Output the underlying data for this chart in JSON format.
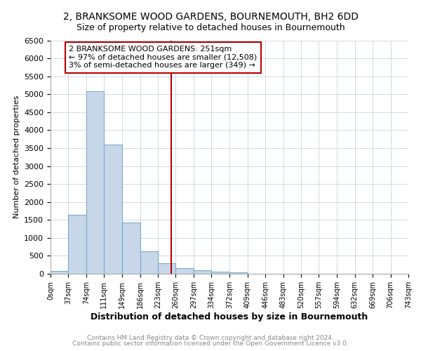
{
  "title": "2, BRANKSOME WOOD GARDENS, BOURNEMOUTH, BH2 6DD",
  "subtitle": "Size of property relative to detached houses in Bournemouth",
  "xlabel": "Distribution of detached houses by size in Bournemouth",
  "ylabel": "Number of detached properties",
  "bin_edges": [
    0,
    37,
    74,
    111,
    149,
    186,
    223,
    260,
    297,
    334,
    372,
    409,
    446,
    483,
    520,
    557,
    594,
    632,
    669,
    706,
    743
  ],
  "bar_heights": [
    75,
    1650,
    5080,
    3600,
    1420,
    620,
    300,
    150,
    100,
    50,
    30,
    0,
    0,
    0,
    0,
    0,
    0,
    0,
    0,
    0
  ],
  "bar_color": "#c8d8ea",
  "bar_edge_color": "#7aaac8",
  "vline_x": 251,
  "vline_color": "#bb0000",
  "annotation_line1": "2 BRANKSOME WOOD GARDENS: 251sqm",
  "annotation_line2": "← 97% of detached houses are smaller (12,508)",
  "annotation_line3": "3% of semi-detached houses are larger (349) →",
  "annotation_box_color": "#bb0000",
  "ylim": [
    0,
    6500
  ],
  "yticks": [
    0,
    500,
    1000,
    1500,
    2000,
    2500,
    3000,
    3500,
    4000,
    4500,
    5000,
    5500,
    6000,
    6500
  ],
  "tick_labels": [
    "0sqm",
    "37sqm",
    "74sqm",
    "111sqm",
    "149sqm",
    "186sqm",
    "223sqm",
    "260sqm",
    "297sqm",
    "334sqm",
    "372sqm",
    "409sqm",
    "446sqm",
    "483sqm",
    "520sqm",
    "557sqm",
    "594sqm",
    "632sqm",
    "669sqm",
    "706sqm",
    "743sqm"
  ],
  "footer_line1": "Contains HM Land Registry data © Crown copyright and database right 2024.",
  "footer_line2": "Contains public sector information licensed under the Open Government Licence v3.0.",
  "background_color": "#ffffff",
  "grid_color": "#c0ccd8",
  "title_fontsize": 10,
  "subtitle_fontsize": 9,
  "ylabel_fontsize": 8,
  "xlabel_fontsize": 9,
  "tick_fontsize": 7,
  "ytick_fontsize": 8,
  "footer_fontsize": 6.5,
  "annotation_fontsize": 8
}
